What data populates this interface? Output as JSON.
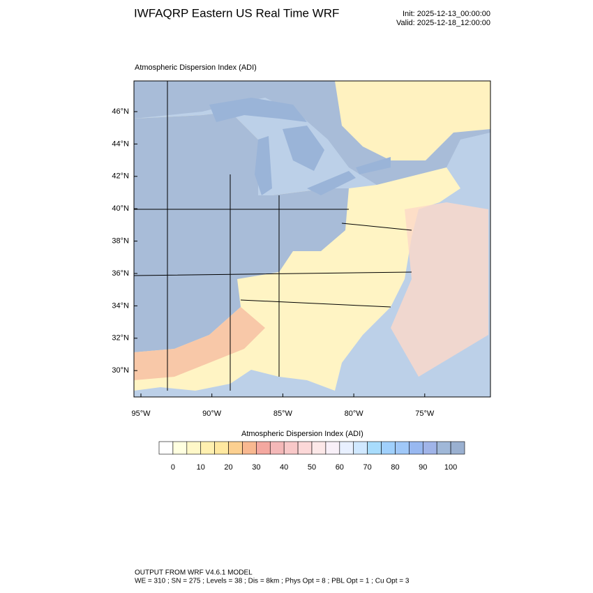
{
  "header": {
    "title": "IWFAQRP Eastern US Real Time WRF",
    "init": "Init: 2025-12-13_00:00:00",
    "valid": "Valid: 2025-12-18_12:00:00"
  },
  "map": {
    "subtitle": "Atmospheric Dispersion Index   (ADI)",
    "lat_labels": [
      "46°N",
      "44°N",
      "42°N",
      "40°N",
      "38°N",
      "36°N",
      "34°N",
      "32°N",
      "30°N"
    ],
    "lon_labels": [
      "95°W",
      "90°W",
      "85°W",
      "80°W",
      "75°W"
    ]
  },
  "colorbar": {
    "title": "Atmospheric Dispersion Index  (ADI)",
    "colors": [
      "#ffffff",
      "#ffffe0",
      "#fff8c8",
      "#fff0b0",
      "#ffe8a0",
      "#fcd090",
      "#f8b890",
      "#f4a8a0",
      "#f4b8b8",
      "#f8c8c8",
      "#fcd8d8",
      "#fce8e8",
      "#f8f0f8",
      "#e8f0ff",
      "#d0e8ff",
      "#a8dcfc",
      "#a0d0fc",
      "#a0c8f8",
      "#98b8f0",
      "#a0b4e8",
      "#a0b8d8",
      "#9ab0d0"
    ],
    "labels": [
      0,
      10,
      20,
      30,
      40,
      50,
      60,
      70,
      80,
      90,
      100
    ]
  },
  "footer": {
    "line1": "OUTPUT FROM WRF V4.6.1 MODEL",
    "line2": "WE = 310 ; SN = 275 ; Levels = 38 ; Dis = 8km ; Phys Opt = 8 ; PBL Opt = 1 ; Cu Opt = 3"
  }
}
